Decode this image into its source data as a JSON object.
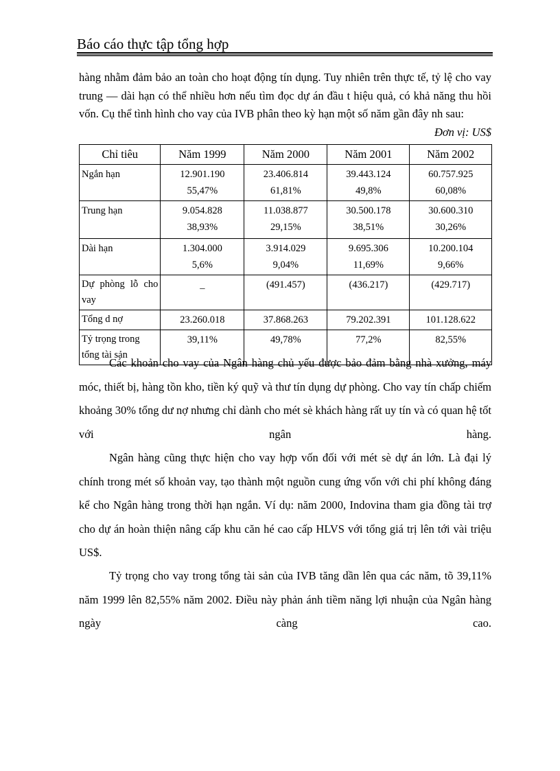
{
  "header": {
    "title": "Báo cáo thực tập tổng hợp"
  },
  "intro": {
    "text": "hàng nhằm đảm bảo an toàn cho hoạt động tín dụng. Tuy nhiên trên thực tế, tỷ lệ cho vay trung — dài hạn có thể nhiều hơn nếu tìm đọc  dự án đầu t  hiệu quả, có khả năng thu hồi vốn. Cụ thể tình hình cho vay của IVB phân theo kỳ hạn một số năm gần đây nh  sau:",
    "unit": "Đơn vị: US$"
  },
  "table": {
    "headers": [
      "Chỉ tiêu",
      "Năm 1999",
      "Năm 2000",
      "Năm 2001",
      "Năm 2002"
    ],
    "rows": [
      {
        "label": "Ngắn hạn",
        "values": [
          [
            "12.901.190",
            "55,47%"
          ],
          [
            "23.406.814",
            "61,81%"
          ],
          [
            "39.443.124",
            "49,8%"
          ],
          [
            "60.757.925",
            "60,08%"
          ]
        ]
      },
      {
        "label": "Trung hạn",
        "values": [
          [
            "9.054.828",
            "38,93%"
          ],
          [
            "11.038.877",
            "29,15%"
          ],
          [
            "30.500.178",
            "38,51%"
          ],
          [
            "30.600.310",
            "30,26%"
          ]
        ]
      },
      {
        "label": "Dài hạn",
        "values": [
          [
            "1.304.000",
            "5,6%"
          ],
          [
            "3.914.029",
            "9,04%"
          ],
          [
            "9.695.306",
            "11,69%"
          ],
          [
            "10.200.104",
            "9,66%"
          ]
        ]
      },
      {
        "label": "Dự   phòng   lỗ cho vay",
        "values": [
          [
            "_"
          ],
          [
            "(491.457)"
          ],
          [
            "(436.217)"
          ],
          [
            "(429.717)"
          ]
        ]
      },
      {
        "label": "Tổng d  nợ",
        "values": [
          [
            "23.260.018"
          ],
          [
            "37.868.263"
          ],
          [
            "79.202.391"
          ],
          [
            "101.128.622"
          ]
        ]
      },
      {
        "label": "Tỷ trọng trong tổng tài sản",
        "values": [
          [
            "39,11%"
          ],
          [
            "49,78%"
          ],
          [
            "77,2%"
          ],
          [
            "82,55%"
          ]
        ]
      }
    ]
  },
  "paragraphs": [
    "Các khoản cho vay của Ngân hàng chủ yếu được bảo đảm bằng nhà xưởng, máy móc, thiết bị, hàng tồn kho, tiền ký quỹ và thư tín dụng dự phòng. Cho vay tín chấp chiếm khoảng 30% tổng dư nợ nhưng chỉ dành cho mét sè khách hàng rất uy tín và có quan hệ tốt với ngân hàng.",
    "Ngân hàng cũng thực hiện cho vay hợp vốn đối với mét sè dự án lớn. Là đại lý chính trong mét số khoản vay, tạo thành một nguồn cung ứng vốn với chi phí không đáng kể cho Ngân hàng trong thời hạn ngắn. Ví dụ: năm 2000, Indovina tham gia đồng tài trợ cho dự án hoàn thiện nâng cấp khu căn hé cao cấp HLVS với tổng giá trị lên tới vài triệu US$.",
    "Tỷ trọng cho vay trong tổng tài sản của IVB tăng dần lên qua các năm, tõ 39,11% năm 1999 lên 82,55% năm 2002. Điều này phản ánh tiềm năng lợi nhuận của Ngân hàng ngày càng cao."
  ]
}
